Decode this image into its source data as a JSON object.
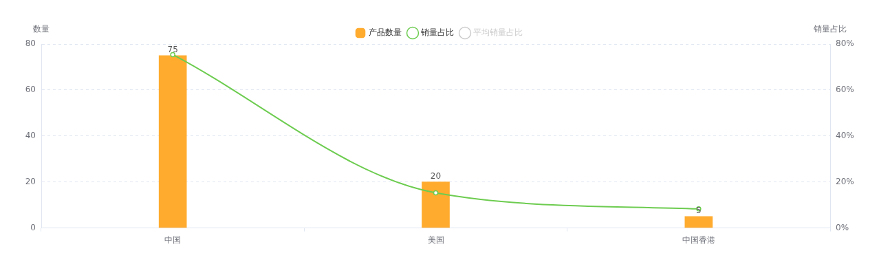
{
  "chart_data": {
    "type": "bar",
    "categories": [
      "中国",
      "美国",
      "中国香港"
    ],
    "ylabel": "数量",
    "y2label": "销量占比",
    "ylim": [
      0,
      80
    ],
    "yticks": [
      0,
      20,
      40,
      60,
      80
    ],
    "y2lim": [
      0,
      80
    ],
    "y2ticks": [
      {
        "value": 0,
        "label": "0%"
      },
      {
        "value": 20,
        "label": "20%"
      },
      {
        "value": 40,
        "label": "40%"
      },
      {
        "value": 60,
        "label": "60%"
      },
      {
        "value": 80,
        "label": "80%"
      }
    ],
    "series": [
      {
        "name": "产品数量",
        "color": "#ffab2e",
        "values": [
          75,
          20,
          5
        ],
        "value_labels": [
          "75",
          "20",
          "5"
        ]
      },
      {
        "name": "销量占比",
        "type": "line",
        "axis": "y2",
        "color": "#6dcc50",
        "values": [
          75.4,
          15.3,
          8.3
        ]
      },
      {
        "name": "平均销量占比",
        "type": "line",
        "axis": "y2",
        "color": "#cccccc",
        "values": [
          null,
          null,
          null
        ]
      }
    ],
    "grid": "y",
    "legend": "top",
    "marker": "circle",
    "line_style": "solid"
  }
}
